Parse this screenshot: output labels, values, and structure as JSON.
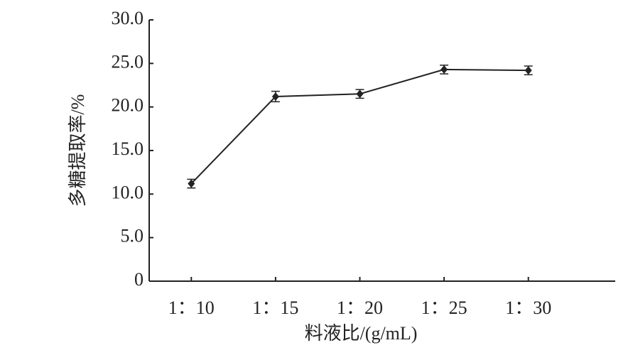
{
  "chart_data": {
    "type": "line",
    "y_label": "多糖提取率/%",
    "x_label": "料液比/(g/mL)",
    "categories": [
      "1：10",
      "1：15",
      "1：20",
      "1：25",
      "1：30"
    ],
    "series": [
      {
        "name": "多糖提取率",
        "color": "#222222",
        "values": [
          11.2,
          21.2,
          21.5,
          24.3,
          24.2
        ],
        "errors": [
          0.5,
          0.6,
          0.5,
          0.5,
          0.5
        ]
      }
    ],
    "ylim": [
      0,
      30
    ],
    "yticks": [
      0,
      {
        "value": 5,
        "label": "5.0"
      },
      {
        "value": 10,
        "label": "10.0"
      },
      {
        "value": 15,
        "label": "15.0"
      },
      {
        "value": 20,
        "label": "20.0"
      },
      {
        "value": 25,
        "label": "25.0"
      },
      {
        "value": 30,
        "label": "30.0"
      }
    ]
  }
}
